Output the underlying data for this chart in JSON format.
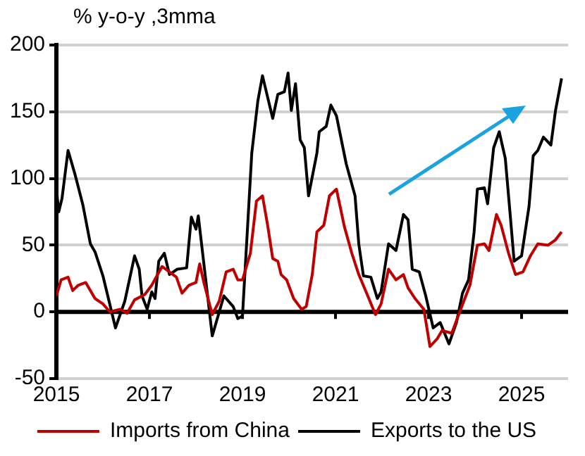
{
  "chart_data": {
    "type": "line",
    "ylabel": "% y-o-y ,3mma",
    "xlim": [
      2015,
      2026
    ],
    "xticks": [
      2015,
      2017,
      2019,
      2021,
      2023,
      2025
    ],
    "ylim": [
      -50,
      200
    ],
    "yticks": [
      -50,
      0,
      50,
      100,
      150,
      200
    ],
    "grid": "y",
    "legend": "bottom",
    "marker": "none",
    "line_style": "solid",
    "ref_lines": [
      {
        "axis": "y",
        "value": 0,
        "color": "#000000"
      }
    ],
    "series": [
      {
        "name": "Imports from China",
        "color": "#c00000",
        "x": [
          2015.0,
          2015.05,
          2015.1,
          2015.25,
          2015.35,
          2015.47,
          2015.63,
          2015.83,
          2016.0,
          2016.15,
          2016.37,
          2016.52,
          2016.68,
          2016.9,
          2017.05,
          2017.27,
          2017.43,
          2017.58,
          2017.7,
          2017.85,
          2018.0,
          2018.08,
          2018.17,
          2018.35,
          2018.5,
          2018.65,
          2018.8,
          2018.9,
          2019.0,
          2019.17,
          2019.3,
          2019.43,
          2019.54,
          2019.65,
          2019.76,
          2019.83,
          2019.95,
          2020.1,
          2020.27,
          2020.37,
          2020.5,
          2020.6,
          2020.75,
          2020.87,
          2021.02,
          2021.19,
          2021.35,
          2021.5,
          2021.67,
          2021.86,
          2021.98,
          2022.14,
          2022.3,
          2022.46,
          2022.56,
          2022.71,
          2022.9,
          2023.03,
          2023.19,
          2023.29,
          2023.5,
          2023.67,
          2023.89,
          2024.05,
          2024.2,
          2024.3,
          2024.46,
          2024.56,
          2024.72,
          2024.87,
          2025.03,
          2025.19,
          2025.35,
          2025.57,
          2025.73,
          2025.86
        ],
        "values": [
          12,
          18,
          24,
          26,
          16,
          20,
          22,
          10,
          6,
          0,
          2,
          -1,
          9,
          13,
          20,
          34,
          30,
          26,
          14,
          20,
          22,
          36,
          22,
          -2,
          8,
          30,
          32,
          24,
          24,
          44,
          83,
          87,
          65,
          40,
          38,
          28,
          24,
          10,
          2,
          4,
          28,
          60,
          65,
          87,
          92,
          64,
          44,
          28,
          14,
          -2,
          6,
          32,
          24,
          28,
          18,
          10,
          2,
          -26,
          -20,
          -14,
          -16,
          0,
          20,
          50,
          51,
          46,
          73,
          65,
          44,
          28,
          30,
          42,
          51,
          50,
          54,
          60
        ]
      },
      {
        "name": "Exports to the US",
        "color": "#000000",
        "x": [
          2015.0,
          2015.05,
          2015.12,
          2015.25,
          2015.4,
          2015.57,
          2015.73,
          2015.83,
          2016.0,
          2016.27,
          2016.47,
          2016.68,
          2016.78,
          2016.84,
          2016.95,
          2017.05,
          2017.12,
          2017.2,
          2017.32,
          2017.43,
          2017.6,
          2017.8,
          2017.9,
          2018.0,
          2018.05,
          2018.35,
          2018.6,
          2018.8,
          2018.9,
          2019.0,
          2019.2,
          2019.33,
          2019.43,
          2019.65,
          2019.76,
          2019.9,
          2019.98,
          2020.05,
          2020.14,
          2020.24,
          2020.33,
          2020.42,
          2020.6,
          2020.65,
          2020.8,
          2020.9,
          2021.02,
          2021.23,
          2021.42,
          2021.5,
          2021.6,
          2021.76,
          2021.9,
          2021.98,
          2022.14,
          2022.3,
          2022.46,
          2022.56,
          2022.65,
          2022.8,
          2022.94,
          2023.1,
          2023.25,
          2023.44,
          2023.6,
          2023.73,
          2023.86,
          2023.98,
          2024.05,
          2024.2,
          2024.27,
          2024.4,
          2024.52,
          2024.65,
          2024.75,
          2024.84,
          2025.0,
          2025.16,
          2025.25,
          2025.35,
          2025.47,
          2025.63,
          2025.73,
          2025.86
        ],
        "values": [
          92,
          75,
          85,
          121,
          103,
          80,
          51,
          45,
          27,
          -12,
          8,
          42,
          32,
          12,
          2,
          15,
          10,
          38,
          44,
          28,
          32,
          33,
          71,
          62,
          72,
          -18,
          12,
          4,
          -5,
          -3,
          119,
          158,
          177,
          145,
          163,
          165,
          179,
          151,
          171,
          129,
          123,
          87,
          119,
          135,
          139,
          155,
          147,
          111,
          87,
          51,
          27,
          26,
          10,
          15,
          51,
          46,
          73,
          69,
          32,
          30,
          12,
          -12,
          -8,
          -24,
          -8,
          14,
          24,
          60,
          92,
          93,
          81,
          123,
          135,
          115,
          75,
          38,
          42,
          79,
          117,
          121,
          131,
          125,
          151,
          175
        ]
      }
    ]
  }
}
